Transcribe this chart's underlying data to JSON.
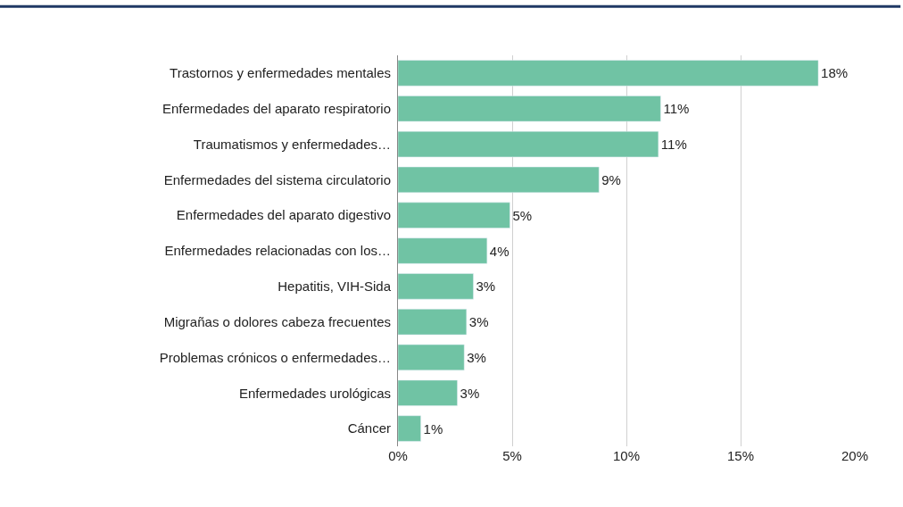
{
  "chart_data": {
    "type": "bar",
    "orientation": "horizontal",
    "categories": [
      "Trastornos y enfermedades mentales",
      "Enfermedades del aparato respiratorio",
      "Traumatismos y enfermedades…",
      "Enfermedades del sistema circulatorio",
      "Enfermedades del aparato digestivo",
      "Enfermedades relacionadas con los…",
      "Hepatitis, VIH-Sida",
      "Migrañas o dolores cabeza frecuentes",
      "Problemas crónicos o enfermedades…",
      "Enfermedades urológicas",
      "Cáncer"
    ],
    "values": [
      18.4,
      11.5,
      11.4,
      8.8,
      4.9,
      3.9,
      3.3,
      3.0,
      2.9,
      2.6,
      1.0
    ],
    "value_labels": [
      "18%",
      "11%",
      "11%",
      "9%",
      "5%",
      "4%",
      "3%",
      "3%",
      "3%",
      "3%",
      "1%"
    ],
    "color": "#70c3a4",
    "xlim": [
      0,
      20
    ],
    "xticks": [
      {
        "value": 0,
        "label": "0%"
      },
      {
        "value": 5,
        "label": "5%"
      },
      {
        "value": 10,
        "label": "10%"
      },
      {
        "value": 15,
        "label": "15%"
      },
      {
        "value": 20,
        "label": "20%"
      }
    ],
    "grid": "x",
    "legend": false
  }
}
